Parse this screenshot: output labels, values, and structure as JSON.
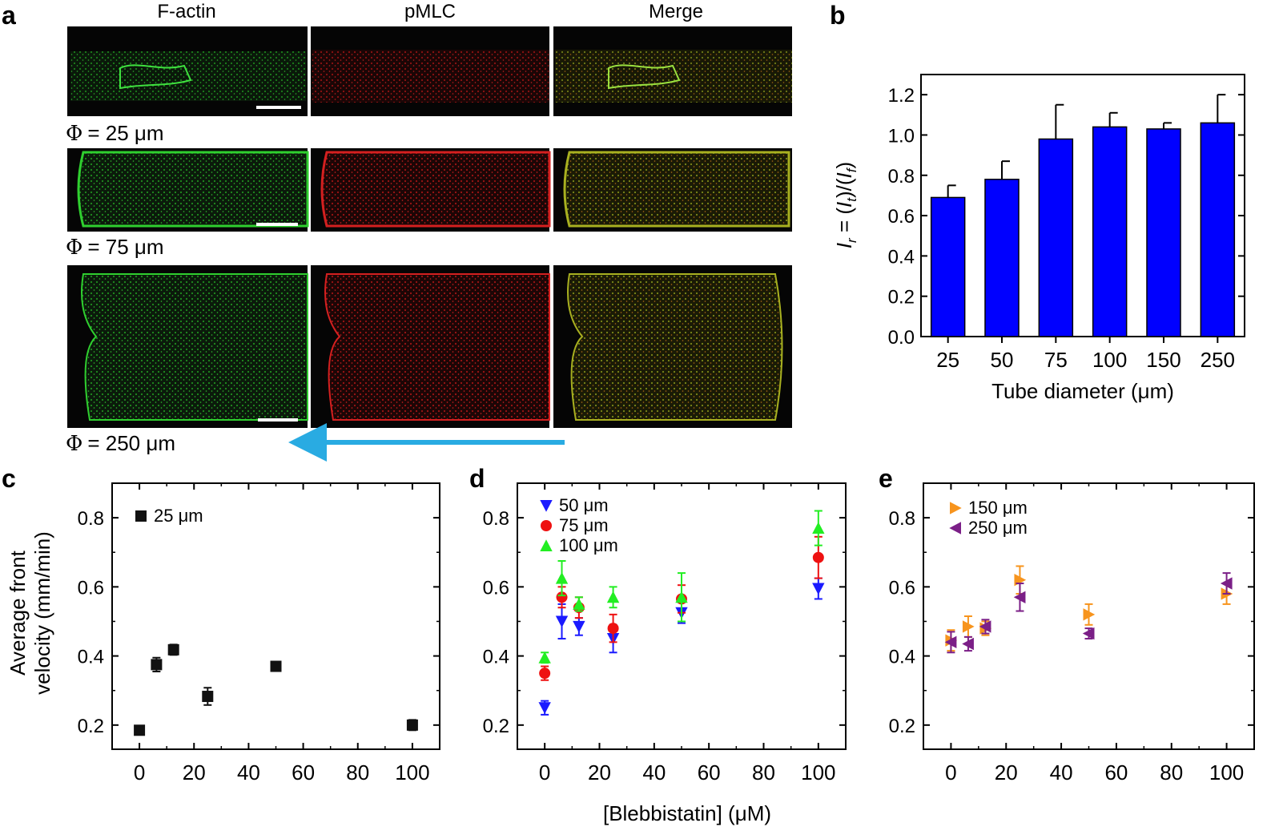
{
  "panel_a": {
    "letter": "a",
    "columns": [
      "F-actin",
      "pMLC",
      "Merge"
    ],
    "rows": [
      {
        "phi": "Φ",
        "label": "= 25 μm"
      },
      {
        "phi": "Φ",
        "label": "= 75 μm"
      },
      {
        "phi": "Φ",
        "label": "= 250 μm"
      }
    ]
  },
  "colors": {
    "bar": "#0000ff",
    "arrow": "#29abe2",
    "black_marker": "#111111",
    "blue_marker": "#1a1aff",
    "red_marker": "#ee1111",
    "green_marker": "#22ee22",
    "orange_marker": "#f7941d",
    "purple_marker": "#7b1f87"
  },
  "chart_data": [
    {
      "panel": "b",
      "type": "bar",
      "title": "",
      "xlabel": "Tube diameter (μm)",
      "ylabel_parts": [
        "I",
        "r",
        " = (",
        "I",
        "t",
        ")/(",
        "I",
        "f",
        ")"
      ],
      "categories": [
        "25",
        "50",
        "75",
        "100",
        "150",
        "250"
      ],
      "values": [
        0.69,
        0.78,
        0.98,
        1.04,
        1.03,
        1.06
      ],
      "errors": [
        0.06,
        0.09,
        0.17,
        0.07,
        0.03,
        0.14
      ],
      "ylim": [
        0,
        1.3
      ],
      "yticks": [
        "0.0",
        "0.2",
        "0.4",
        "0.6",
        "0.8",
        "1.0",
        "1.2"
      ]
    },
    {
      "panel": "c",
      "type": "scatter",
      "ylabel": [
        "Average front",
        "velocity (mm/min)"
      ],
      "xlim": [
        -10,
        110
      ],
      "ylim": [
        0.13,
        0.9
      ],
      "xticks": [
        "0",
        "20",
        "40",
        "60",
        "80",
        "100"
      ],
      "yticks": [
        "0.2",
        "0.4",
        "0.6",
        "0.8"
      ],
      "series": [
        {
          "name": "25 μm",
          "marker": "square",
          "x": [
            0,
            6.25,
            12.5,
            25,
            50,
            100
          ],
          "y": [
            0.185,
            0.375,
            0.418,
            0.283,
            0.37,
            0.2
          ],
          "err": [
            0.008,
            0.02,
            0.015,
            0.025,
            0.01,
            0.015
          ]
        }
      ]
    },
    {
      "panel": "d",
      "type": "scatter",
      "xlabel": "[Blebbistatin] (μM)",
      "xlim": [
        -10,
        110
      ],
      "ylim": [
        0.13,
        0.9
      ],
      "xticks": [
        "0",
        "20",
        "40",
        "60",
        "80",
        "100"
      ],
      "yticks": [
        "0.2",
        "0.4",
        "0.6",
        "0.8"
      ],
      "series": [
        {
          "name": "50 μm",
          "marker": "triangle-down",
          "x": [
            0,
            6.25,
            12.5,
            25,
            50,
            100
          ],
          "y": [
            0.25,
            0.5,
            0.485,
            0.45,
            0.525,
            0.595
          ],
          "err": [
            0.02,
            0.05,
            0.025,
            0.04,
            0.03,
            0.03
          ]
        },
        {
          "name": "75 μm",
          "marker": "circle",
          "x": [
            0,
            6.25,
            12.5,
            25,
            50,
            100
          ],
          "y": [
            0.35,
            0.57,
            0.54,
            0.48,
            0.565,
            0.685
          ],
          "err": [
            0.02,
            0.03,
            0.03,
            0.04,
            0.04,
            0.06
          ]
        },
        {
          "name": "100 μm",
          "marker": "triangle-up",
          "x": [
            0,
            6.25,
            12.5,
            25,
            50,
            100
          ],
          "y": [
            0.395,
            0.625,
            0.55,
            0.57,
            0.57,
            0.77
          ],
          "err": [
            0.015,
            0.05,
            0.02,
            0.03,
            0.07,
            0.05
          ]
        }
      ]
    },
    {
      "panel": "e",
      "type": "scatter",
      "xlim": [
        -10,
        110
      ],
      "ylim": [
        0.13,
        0.9
      ],
      "xticks": [
        "0",
        "20",
        "40",
        "60",
        "80",
        "100"
      ],
      "yticks": [
        "0.2",
        "0.4",
        "0.6",
        "0.8"
      ],
      "series": [
        {
          "name": "150 μm",
          "marker": "triangle-right",
          "x": [
            0,
            6.25,
            12.5,
            25,
            50,
            100
          ],
          "y": [
            0.445,
            0.485,
            0.48,
            0.62,
            0.52,
            0.58
          ],
          "err": [
            0.03,
            0.03,
            0.02,
            0.04,
            0.03,
            0.03
          ]
        },
        {
          "name": "250 μm",
          "marker": "triangle-left",
          "x": [
            0,
            6.25,
            12.5,
            25,
            50,
            100
          ],
          "y": [
            0.44,
            0.435,
            0.485,
            0.57,
            0.465,
            0.61
          ],
          "err": [
            0.03,
            0.02,
            0.02,
            0.04,
            0.015,
            0.03
          ]
        }
      ]
    }
  ]
}
